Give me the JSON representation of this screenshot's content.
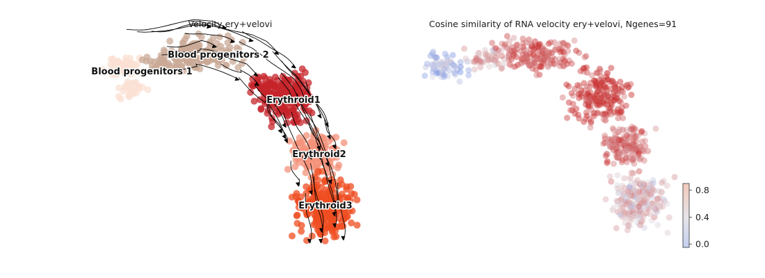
{
  "chart_data": [
    {
      "type": "scatter",
      "subtype": "embedding-streamplot",
      "title": "Velocity ery+velovi",
      "grid": false,
      "axes_visible": false,
      "arrows": true,
      "series": [
        {
          "name": "Blood progenitors 1",
          "color": "#fbe0d3"
        },
        {
          "name": "Blood progenitors 2",
          "color": "#c9a997"
        },
        {
          "name": "Erythroid1",
          "color": "#c6242b"
        },
        {
          "name": "Erythroid2",
          "color": "#f4917a"
        },
        {
          "name": "Erythroid3",
          "color": "#ef4e22"
        }
      ]
    },
    {
      "type": "scatter",
      "subtype": "embedding-colored",
      "title": "Cosine similarity of RNA velocity ery+velovi, Ngenes=91",
      "grid": false,
      "axes_visible": false,
      "colorbar": {
        "colormap": "coolwarm",
        "ticks": [
          "0.0",
          "0.4",
          "0.8"
        ],
        "tick_values": [
          0.0,
          0.4,
          0.8
        ],
        "range": [
          -0.05,
          0.9
        ]
      }
    }
  ]
}
